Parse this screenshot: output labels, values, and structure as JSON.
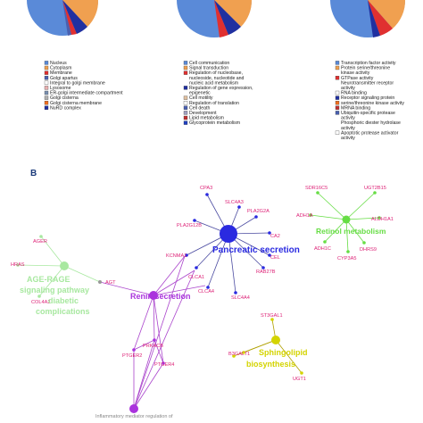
{
  "panel_b_label": "B",
  "colors": {
    "panc": "#2a2ae0",
    "retinol": "#66dd44",
    "age": "#a8e8a0",
    "renin": "#aa33dd",
    "sphingo": "#d4d400",
    "pink": "#dd2277",
    "edge_blue": "#4a4aa0",
    "edge_purple": "#aa44cc",
    "edge_yellow": "#b0a000"
  },
  "legend1": [
    {
      "label": "Nucleus",
      "color": "#5a8ad8"
    },
    {
      "label": "Cytoplasm",
      "color": "#f0a050"
    },
    {
      "label": "Membrane",
      "color": "#e03030"
    },
    {
      "label": "Golgi apartus",
      "color": "#4a60b0"
    },
    {
      "label": "Integral to golgi membrane",
      "color": "#ffffff"
    },
    {
      "label": "Lysosome",
      "color": "#e8b0b0"
    },
    {
      "label": "ER-golgi intermediate compartment",
      "color": "#7a90b0"
    },
    {
      "label": "Golgi cisterna",
      "color": "#b0b0b0"
    },
    {
      "label": "Golgi cisterna membrane",
      "color": "#f07020"
    },
    {
      "label": "NuRD complex",
      "color": "#2030a0"
    }
  ],
  "legend2": [
    {
      "label": "Cell communication",
      "color": "#5a8ad8"
    },
    {
      "label": "Signal transduction",
      "color": "#f0a050"
    },
    {
      "label": "Regulation of nucleobase,",
      "color": "#e03030"
    },
    {
      "label": "nucleoside, nucleotide and",
      "color": null
    },
    {
      "label": "nucleic acid metabolism",
      "color": null
    },
    {
      "label": "Regulation of gene expression,",
      "color": "#2030a0"
    },
    {
      "label": "epigenetic",
      "color": null
    },
    {
      "label": "Cell motility",
      "color": "#e0c0a0"
    },
    {
      "label": "Regulation of translation",
      "color": "#ffffff"
    },
    {
      "label": "Cell death",
      "color": "#4a60b0"
    },
    {
      "label": "Development",
      "color": "#a0a0c0"
    },
    {
      "label": "Lipid metabolism",
      "color": "#c03030"
    },
    {
      "label": "Glycoprotein metabolism",
      "color": "#2040c0"
    }
  ],
  "legend3": [
    {
      "label": "Transcription factor activity",
      "color": "#5a8ad8"
    },
    {
      "label": "Protein serine/threonine",
      "color": "#f0a050"
    },
    {
      "label": "kinase activity",
      "color": null
    },
    {
      "label": "GTPase activity",
      "color": "#e03030"
    },
    {
      "label": "Neurotransmitter receptor",
      "color": null
    },
    {
      "label": "activity",
      "color": null
    },
    {
      "label": "RNA binding",
      "color": "#ffffff"
    },
    {
      "label": "Receptor signaling protein",
      "color": "#2030a0"
    },
    {
      "label": "serine/threonine kinase activity",
      "color": "#f07020"
    },
    {
      "label": "MRNA binding",
      "color": "#c03030"
    },
    {
      "label": "Ubiquitin-specific protease",
      "color": "#4a60b0"
    },
    {
      "label": "activity",
      "color": null
    },
    {
      "label": "Phosphoric diester hydrolase",
      "color": null
    },
    {
      "label": "activity",
      "color": null
    },
    {
      "label": "Apoptotic protease activator",
      "color": "#ffffff"
    },
    {
      "label": "activity",
      "color": null
    }
  ],
  "network": {
    "hubs": {
      "panc": "Pancreatic secretion",
      "retinol": "Retinol metabolism",
      "age_1": "AGE-RAGE",
      "age_2": "signaling pathway",
      "age_3": "diabetic",
      "age_4": "complications",
      "renin": "Renin secretion",
      "sphingo_1": "Sphingolipid",
      "sphingo_2": "biosynthesis",
      "inflam": "Inflammatory mediator regulation of"
    },
    "genes": {
      "CPA3": "CPA3",
      "SLC4A3": "SLC4A3",
      "PLA2G2A": "PLA2G2A",
      "CA2": "CA2",
      "PLA2G12B": "PLA2G12B",
      "CEL": "CEL",
      "KCNMA1": "KCNMA1",
      "CLCA1": "CLCA1",
      "RAB27B": "RAB27B",
      "CLCA4": "CLCA4",
      "SLC4A4": "SLC4A4",
      "SDR16C5": "SDR16C5",
      "UGT2B15": "UGT2B15",
      "ADH1A": "ADH1A",
      "ALDH1A1": "ALDH1A1",
      "ADH1C": "ADH1C",
      "CYP3A5": "CYP3A5",
      "DHRS9": "DHRS9",
      "AGER": "AGER",
      "HRAS": "HRAS",
      "AGT": "AGT",
      "COL4A2": "COL4A2",
      "PRKACB": "PRKACB",
      "PTGER2": "PTGER2",
      "PTGER4": "PTGER4",
      "ST3GAL1": "ST3GAL1",
      "B3GALT1": "B3GALT1",
      "UGT1": "UGT1"
    }
  }
}
